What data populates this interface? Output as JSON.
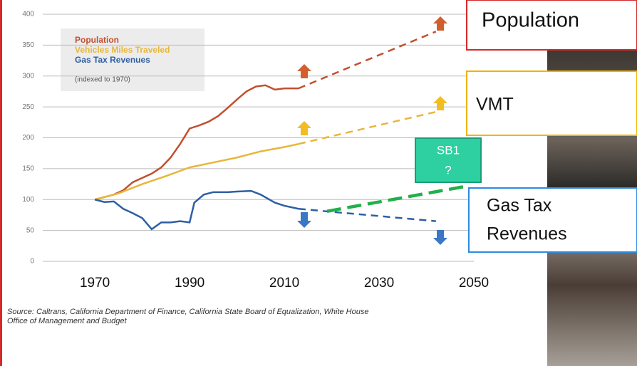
{
  "chart_data": {
    "type": "line",
    "legend_note": "(indexed to 1970)",
    "xlim": [
      1959,
      2050
    ],
    "xticks": [
      1970,
      1990,
      2010,
      2030,
      2050
    ],
    "ylim": [
      0,
      400
    ],
    "yticks": [
      0,
      50,
      100,
      150,
      200,
      250,
      300,
      350,
      400
    ],
    "grid": true,
    "series": [
      {
        "name": "Population",
        "color": "#c0502f",
        "x": [
          1970,
          1972,
          1974,
          1976,
          1978,
          1980,
          1982,
          1984,
          1986,
          1988,
          1990,
          1992,
          1994,
          1996,
          1998,
          2000,
          2002,
          2004,
          2006,
          2008,
          2010,
          2013
        ],
        "values": [
          100,
          104,
          108,
          115,
          128,
          135,
          142,
          152,
          168,
          190,
          215,
          220,
          226,
          235,
          248,
          262,
          275,
          283,
          285,
          278,
          280,
          280
        ],
        "projection_x": [
          2013,
          2042
        ],
        "projection_values": [
          280,
          372
        ]
      },
      {
        "name": "Vehicles Miles Traveled",
        "color": "#e8b63a",
        "x": [
          1970,
          1975,
          1980,
          1985,
          1990,
          1995,
          2000,
          2005,
          2010,
          2013
        ],
        "values": [
          100,
          110,
          125,
          138,
          152,
          160,
          168,
          178,
          185,
          190
        ],
        "projection_x": [
          2013,
          2042
        ],
        "projection_values": [
          190,
          242
        ]
      },
      {
        "name": "Gas Tax Revenues",
        "color": "#2e5fa3",
        "x": [
          1970,
          1972,
          1974,
          1976,
          1978,
          1980,
          1982,
          1984,
          1986,
          1988,
          1990,
          1991,
          1993,
          1995,
          1998,
          2000,
          2003,
          2005,
          2008,
          2010,
          2013
        ],
        "values": [
          100,
          96,
          97,
          85,
          78,
          70,
          52,
          63,
          63,
          65,
          63,
          95,
          108,
          112,
          112,
          113,
          114,
          108,
          95,
          90,
          85
        ],
        "projection_x": [
          2013,
          2042
        ],
        "projection_values": [
          85,
          65
        ]
      }
    ],
    "sb1_line": {
      "x": [
        2019,
        2048
      ],
      "values": [
        81,
        121
      ],
      "color": "#22b04b"
    },
    "callouts": {
      "population": "Population",
      "vmt": "VMT",
      "gas": [
        "Gas Tax",
        "Revenues"
      ],
      "sb1": [
        "SB1",
        "?"
      ]
    },
    "source": [
      "Source: Caltrans, California Department of Finance, California State Board of Equalization, White House",
      "Office of Management and Budget"
    ]
  }
}
